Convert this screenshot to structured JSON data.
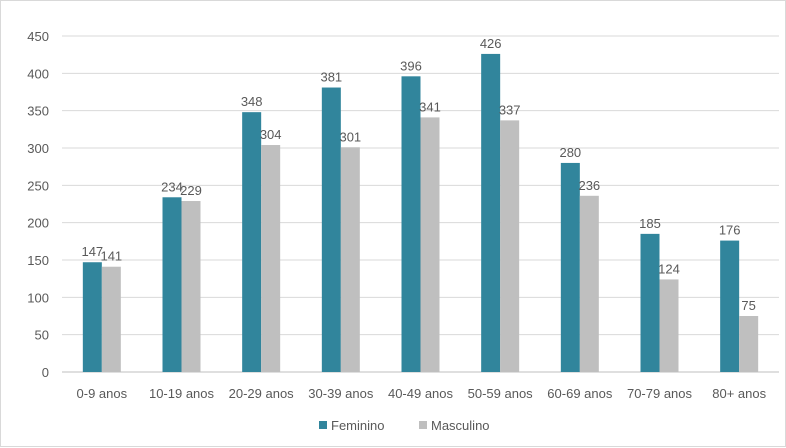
{
  "chart_data": {
    "type": "bar",
    "title": "",
    "xlabel": "",
    "ylabel": "",
    "categories": [
      "0-9 anos",
      "10-19 anos",
      "20-29 anos",
      "30-39 anos",
      "40-49 anos",
      "50-59 anos",
      "60-69 anos",
      "70-79 anos",
      "80+ anos"
    ],
    "series": [
      {
        "name": "Feminino",
        "color": "#31859C",
        "values": [
          147,
          234,
          348,
          381,
          396,
          426,
          280,
          185,
          176
        ]
      },
      {
        "name": "Masculino",
        "color": "#BFBFBF",
        "values": [
          141,
          229,
          304,
          301,
          341,
          337,
          236,
          124,
          75
        ]
      }
    ],
    "ylim": [
      0,
      450
    ],
    "yticks": [
      0,
      50,
      100,
      150,
      200,
      250,
      300,
      350,
      400,
      450
    ],
    "grid": true,
    "legend": "bottom-center"
  }
}
